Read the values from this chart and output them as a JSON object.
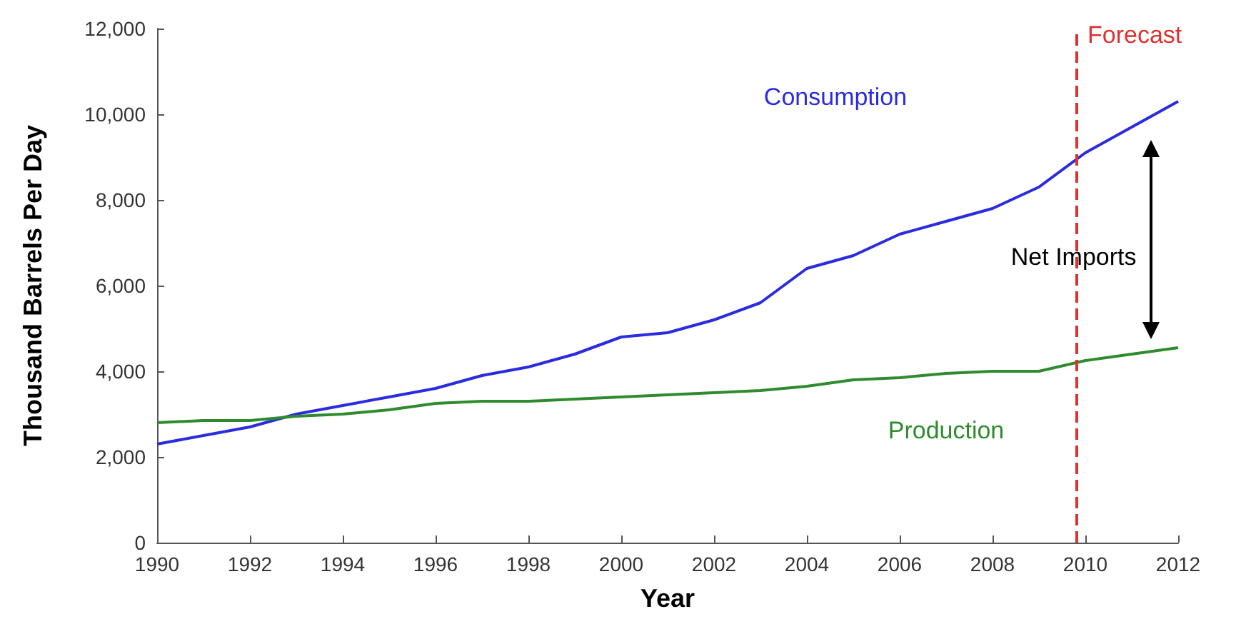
{
  "chart_data": {
    "type": "line",
    "xlabel": "Year",
    "ylabel": "Thousand Barrels Per Day",
    "x": [
      1990,
      1991,
      1992,
      1993,
      1994,
      1995,
      1996,
      1997,
      1998,
      1999,
      2000,
      2001,
      2002,
      2003,
      2004,
      2005,
      2006,
      2007,
      2008,
      2009,
      2010,
      2011,
      2012
    ],
    "series": [
      {
        "name": "Consumption",
        "color": "#2b2bdf",
        "values": [
          2300,
          2500,
          2700,
          3000,
          3200,
          3400,
          3600,
          3900,
          4100,
          4400,
          4800,
          4900,
          5200,
          5600,
          6400,
          6700,
          7200,
          7500,
          7800,
          8300,
          9100,
          9700,
          10300
        ]
      },
      {
        "name": "Production",
        "color": "#2e8b2e",
        "values": [
          2800,
          2850,
          2850,
          2950,
          3000,
          3100,
          3250,
          3300,
          3300,
          3350,
          3400,
          3450,
          3500,
          3550,
          3650,
          3800,
          3850,
          3950,
          4000,
          4000,
          4250,
          4400,
          4550
        ]
      }
    ],
    "xlim": [
      1990,
      2012
    ],
    "xticks": [
      1990,
      1992,
      1994,
      1996,
      1998,
      2000,
      2002,
      2004,
      2006,
      2008,
      2010,
      2012
    ],
    "ylim": [
      0,
      12000
    ],
    "yticks": [
      {
        "value": 0,
        "label": "0"
      },
      {
        "value": 2000,
        "label": "2,000"
      },
      {
        "value": 4000,
        "label": "4,000"
      },
      {
        "value": 6000,
        "label": "6,000"
      },
      {
        "value": 8000,
        "label": "8,000"
      },
      {
        "value": 10000,
        "label": "10,000"
      },
      {
        "value": 12000,
        "label": "12,000"
      }
    ],
    "ref_lines": [
      {
        "axis": "x",
        "value": 2009.8,
        "label": "Forecast",
        "color": "#e03030",
        "line_style": "dashed"
      }
    ],
    "annotations": [
      "Net Imports"
    ],
    "grid": false,
    "legend": false,
    "marker": "none",
    "line_style": "solid"
  }
}
